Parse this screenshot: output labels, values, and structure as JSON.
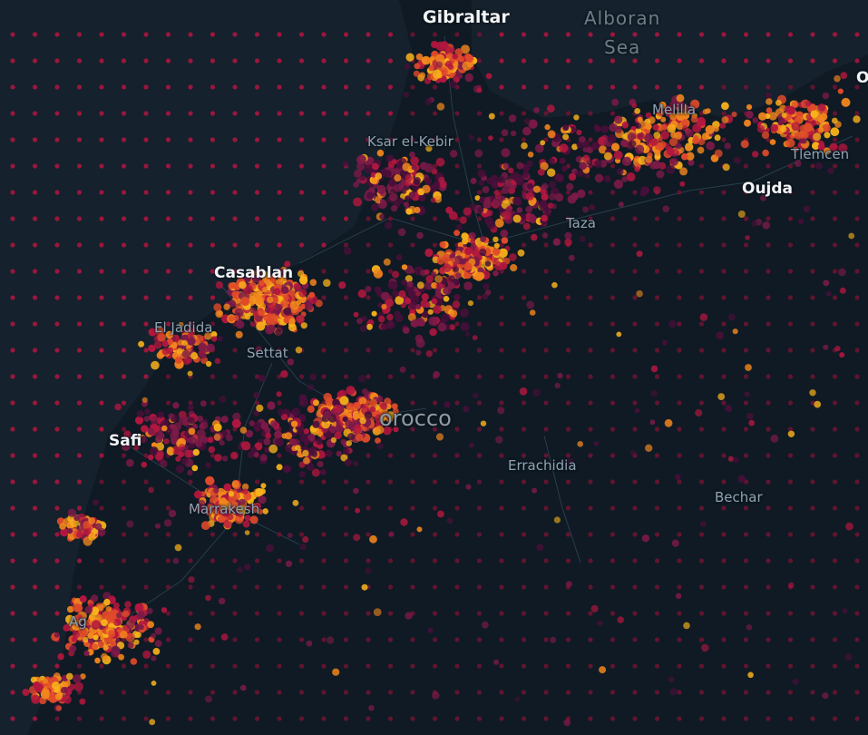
{
  "map": {
    "country_label": "orocco",
    "sea_label_line1": "Alboran",
    "sea_label_line2": "Sea",
    "cities": {
      "gibraltar": "Gibraltar",
      "melilla": "Melilla",
      "ksar_el_kebir": "Ksar el-Kebir",
      "oujda": "Oujda",
      "tlemcen": "Tlemcen",
      "taza": "Taza",
      "casablanca": "Casablan",
      "el_jadida": "El Jadida",
      "settat": "Settat",
      "safi": "Safi",
      "marrakesh": "Marrakesh",
      "errachidia": "Errachidia",
      "bechar": "Bechar",
      "agadir": "Ag",
      "oran": "O"
    },
    "colors": {
      "background": "#15212c",
      "land": "#0f1a24",
      "grid_dot": "#a8153f",
      "palette": [
        "#4a0f3a",
        "#7c1a48",
        "#b3173f",
        "#e04a2a",
        "#f2861d",
        "#f9b21b"
      ]
    },
    "layers": {
      "grid": "dot-grid",
      "points": "scatterplot",
      "roads": "road-lines"
    }
  }
}
